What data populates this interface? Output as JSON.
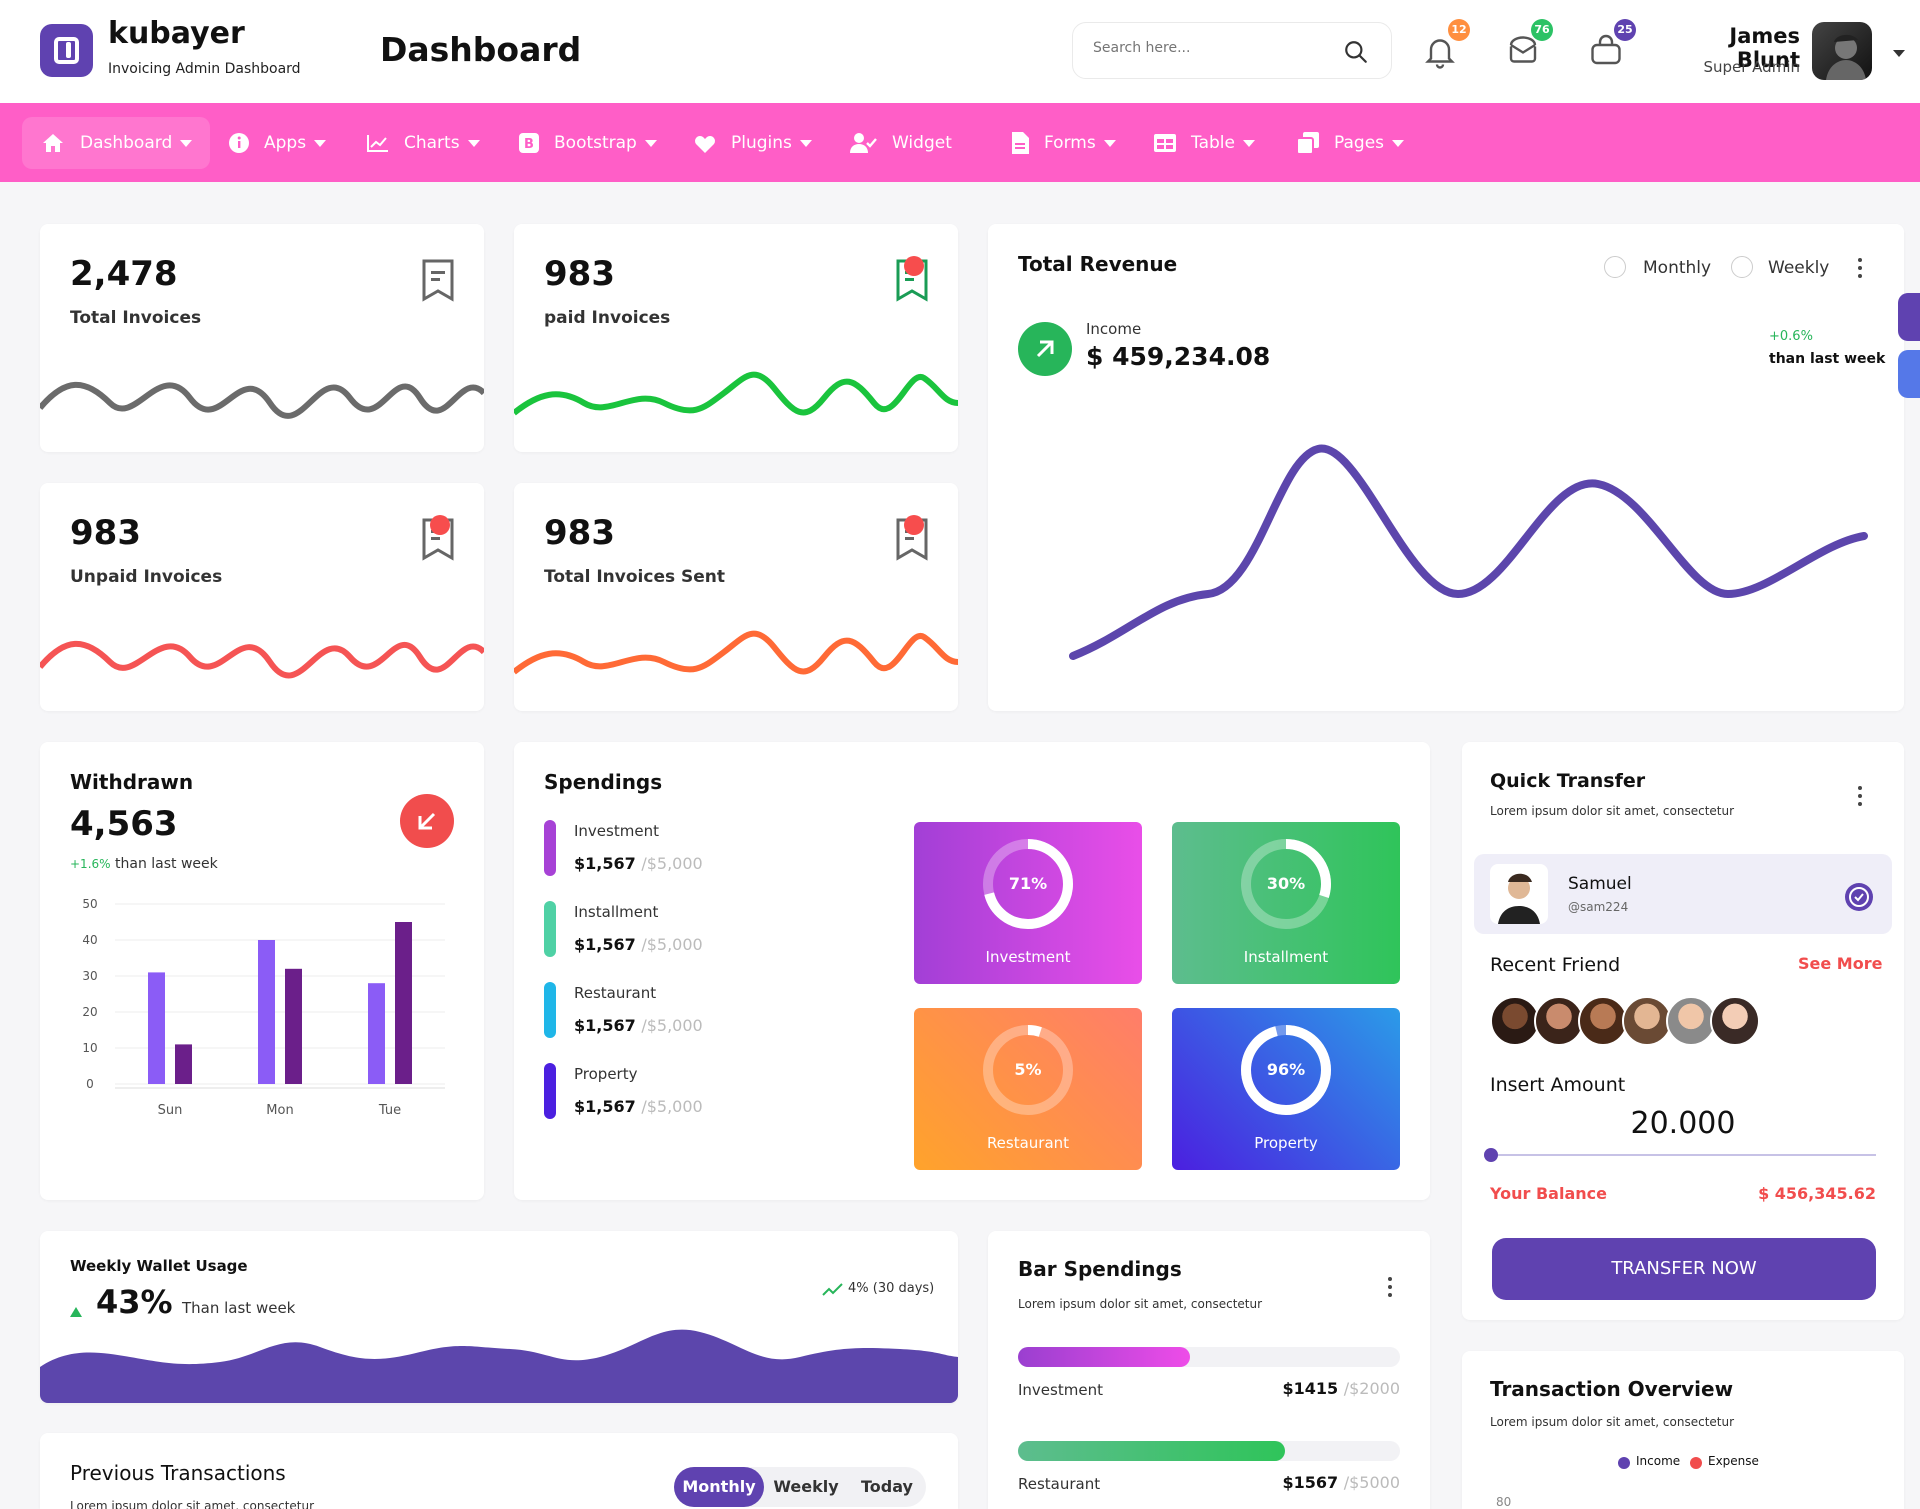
{
  "header": {
    "brand_name": "kubayer",
    "brand_sub": "Invoicing Admin Dashboard",
    "page_title": "Dashboard",
    "search_placeholder": "Search here...",
    "notifications": {
      "bell": "12",
      "mail": "76",
      "cart": "25"
    },
    "user_name": "James Blunt",
    "user_role": "Super Admin"
  },
  "nav": [
    {
      "label": "Dashboard",
      "icon": "home-icon"
    },
    {
      "label": "Apps",
      "icon": "info-icon"
    },
    {
      "label": "Charts",
      "icon": "chart-line-icon"
    },
    {
      "label": "Bootstrap",
      "icon": "bootstrap-icon"
    },
    {
      "label": "Plugins",
      "icon": "heart-icon"
    },
    {
      "label": "Widget",
      "icon": "user-check-icon"
    },
    {
      "label": "Forms",
      "icon": "file-icon"
    },
    {
      "label": "Table",
      "icon": "table-icon"
    },
    {
      "label": "Pages",
      "icon": "copy-icon"
    }
  ],
  "stats": [
    {
      "value": "2,478",
      "label": "Total Invoices"
    },
    {
      "value": "983",
      "label": "paid Invoices"
    },
    {
      "value": "983",
      "label": "Unpaid Invoices"
    },
    {
      "value": "983",
      "label": "Total Invoices Sent"
    }
  ],
  "revenue": {
    "title": "Total Revenue",
    "options": [
      "Monthly",
      "Weekly"
    ],
    "income_label": "Income",
    "income_value": "$ 459,234.08",
    "change": "+0.6%",
    "change_sub": "than last week"
  },
  "withdrawn": {
    "title": "Withdrawn",
    "value": "4,563",
    "change": "+1.6%",
    "change_sub": "than last week",
    "chart_data": {
      "type": "bar",
      "categories": [
        "Sun",
        "Mon",
        "Tue"
      ],
      "series": [
        {
          "color": "#8b5cf6",
          "values": [
            31,
            40,
            28
          ]
        },
        {
          "color": "#6b1f8a",
          "values": [
            11,
            32,
            45
          ]
        }
      ],
      "ylim": [
        0,
        50
      ],
      "yticks": [
        "50",
        "40",
        "30",
        "20",
        "10",
        "0"
      ]
    }
  },
  "spendings": {
    "title": "Spendings",
    "items": [
      {
        "name": "Investment",
        "value": "$1,567",
        "max": "/$5,000",
        "color": "#a742d6"
      },
      {
        "name": "Installment",
        "value": "$1,567",
        "max": "/$5,000",
        "color": "#4fd1a5"
      },
      {
        "name": "Restaurant",
        "value": "$1,567",
        "max": "/$5,000",
        "color": "#1fb6e8"
      },
      {
        "name": "Property",
        "value": "$1,567",
        "max": "/$5,000",
        "color": "#4b1fe0"
      }
    ],
    "tiles": [
      {
        "pct": "71%",
        "fraction": 0.71,
        "name": "Investment"
      },
      {
        "pct": "30%",
        "fraction": 0.3,
        "name": "Installment"
      },
      {
        "pct": "5%",
        "fraction": 0.05,
        "name": "Restaurant"
      },
      {
        "pct": "96%",
        "fraction": 0.96,
        "name": "Property"
      }
    ]
  },
  "quick_transfer": {
    "title": "Quick Transfer",
    "subtitle": "Lorem ipsum dolor sit amet, consectetur",
    "contact_name": "Samuel",
    "contact_handle": "@sam224",
    "recent_friend": "Recent Friend",
    "see_more": "See More",
    "insert_amount": "Insert Amount",
    "amount": "20.000",
    "balance_label": "Your Balance",
    "balance_value": "$ 456,345.62",
    "button": "TRANSFER NOW"
  },
  "wallet": {
    "title": "Weekly Wallet Usage",
    "value": "43%",
    "sub": "Than last week",
    "trend": "4% (30 days)"
  },
  "bar_spendings": {
    "title": "Bar Spendings",
    "subtitle": "Lorem ipsum dolor sit amet, consectetur",
    "items": [
      {
        "name": "Investment",
        "value": "$1415",
        "max": "/$2000",
        "fraction": 0.45
      },
      {
        "name": "Restaurant",
        "value": "$1567",
        "max": "/$5000",
        "fraction": 0.7
      }
    ]
  },
  "previous_transactions": {
    "title": "Previous Transactions",
    "subtitle": "Lorem ipsum dolor sit amet, consectetur",
    "tabs": [
      "Monthly",
      "Weekly",
      "Today"
    ]
  },
  "transaction_overview": {
    "title": "Transaction Overview",
    "subtitle": "Lorem ipsum dolor sit amet, consectetur",
    "legend": [
      "Income",
      "Expense"
    ],
    "first_tick": "80"
  }
}
